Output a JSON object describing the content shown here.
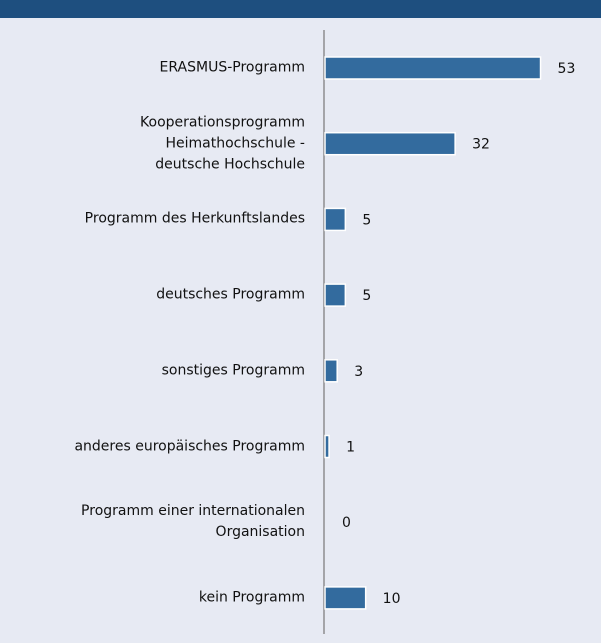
{
  "chart_data": {
    "type": "bar",
    "orientation": "horizontal",
    "categories": [
      "ERASMUS-Programm",
      "Kooperationsprogramm\nHeimathochschule -\ndeutsche Hochschule",
      "Programm des Herkunftslandes",
      "deutsches Programm",
      "sonstiges Programm",
      "anderes europäisches Programm",
      "Programm einer internationalen\nOrganisation",
      "kein Programm"
    ],
    "values": [
      53,
      32,
      5,
      5,
      3,
      1,
      0,
      10
    ],
    "color": "#336b9e",
    "xlim": [
      0,
      60
    ]
  }
}
